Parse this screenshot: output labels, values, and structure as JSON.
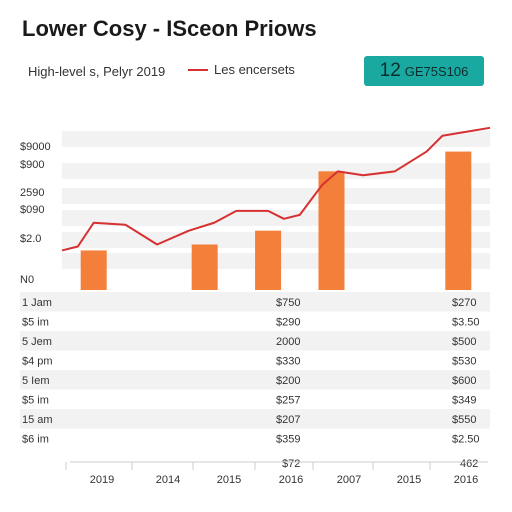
{
  "header": {
    "title": "Lower Cosy - IScеon Priows",
    "subtitle": "High-level s, Pelyr 2019",
    "legend_label": "Les encersets",
    "badge_big": "12",
    "badge_small": "GE75S106"
  },
  "colors": {
    "line": "#d63031",
    "bar": "#f47f3a",
    "badge": "#1aa9a0",
    "band": "#f2f2f2"
  },
  "chart_data": {
    "type": "bar",
    "title": "Lower Cosy - IScеon Priows",
    "subtitle": "High-level s, Pelyr 2019",
    "y_tick_labels": [
      "$9000",
      "$900",
      "2590",
      "$090",
      "$2.0",
      "N0"
    ],
    "x_tick_labels": [
      "2019",
      "2014",
      "2015",
      "2016",
      "2007",
      "2015",
      "2016"
    ],
    "bars": [
      {
        "x": 1.0,
        "value": 1.0
      },
      {
        "x": 4.5,
        "value": 1.15
      },
      {
        "x": 6.5,
        "value": 1.5
      },
      {
        "x": 8.5,
        "value": 3.0
      },
      {
        "x": 12.5,
        "value": 3.5
      }
    ],
    "series": [
      {
        "name": "Les encersets",
        "x": [
          0,
          0.5,
          1.0,
          2.0,
          3.0,
          4.0,
          4.8,
          5.5,
          6.5,
          7.0,
          7.5,
          8.2,
          8.7,
          9.5,
          10.5,
          11.5,
          12.0,
          13.5
        ],
        "values": [
          1.0,
          1.1,
          1.7,
          1.65,
          1.15,
          1.5,
          1.7,
          2.0,
          2.0,
          1.8,
          1.9,
          2.65,
          3.0,
          2.9,
          3.0,
          3.5,
          3.9,
          4.1
        ]
      }
    ],
    "xlim": [
      0,
      13.5
    ],
    "ylim": [
      0,
      4.5
    ],
    "grid": "horizontal bands",
    "table_rows": [
      {
        "label": "1 Jam",
        "mid": "$750",
        "right": "$270"
      },
      {
        "label": "$5 im",
        "mid": "$290",
        "right": "$3.50"
      },
      {
        "label": "5 Jem",
        "mid": "2000",
        "right": "$500"
      },
      {
        "label": "$4 pm",
        "mid": "$330",
        "right": "$530"
      },
      {
        "label": "5 Iem",
        "mid": "$200",
        "right": "$600"
      },
      {
        "label": "$5 im",
        "mid": "$257",
        "right": "$349"
      },
      {
        "label": "15 am",
        "mid": "$207",
        "right": "$550"
      },
      {
        "label": "$6 im",
        "mid": "$359",
        "right": "$2.50"
      }
    ],
    "bottom_row": {
      "mid": "$72",
      "right": "462"
    }
  }
}
